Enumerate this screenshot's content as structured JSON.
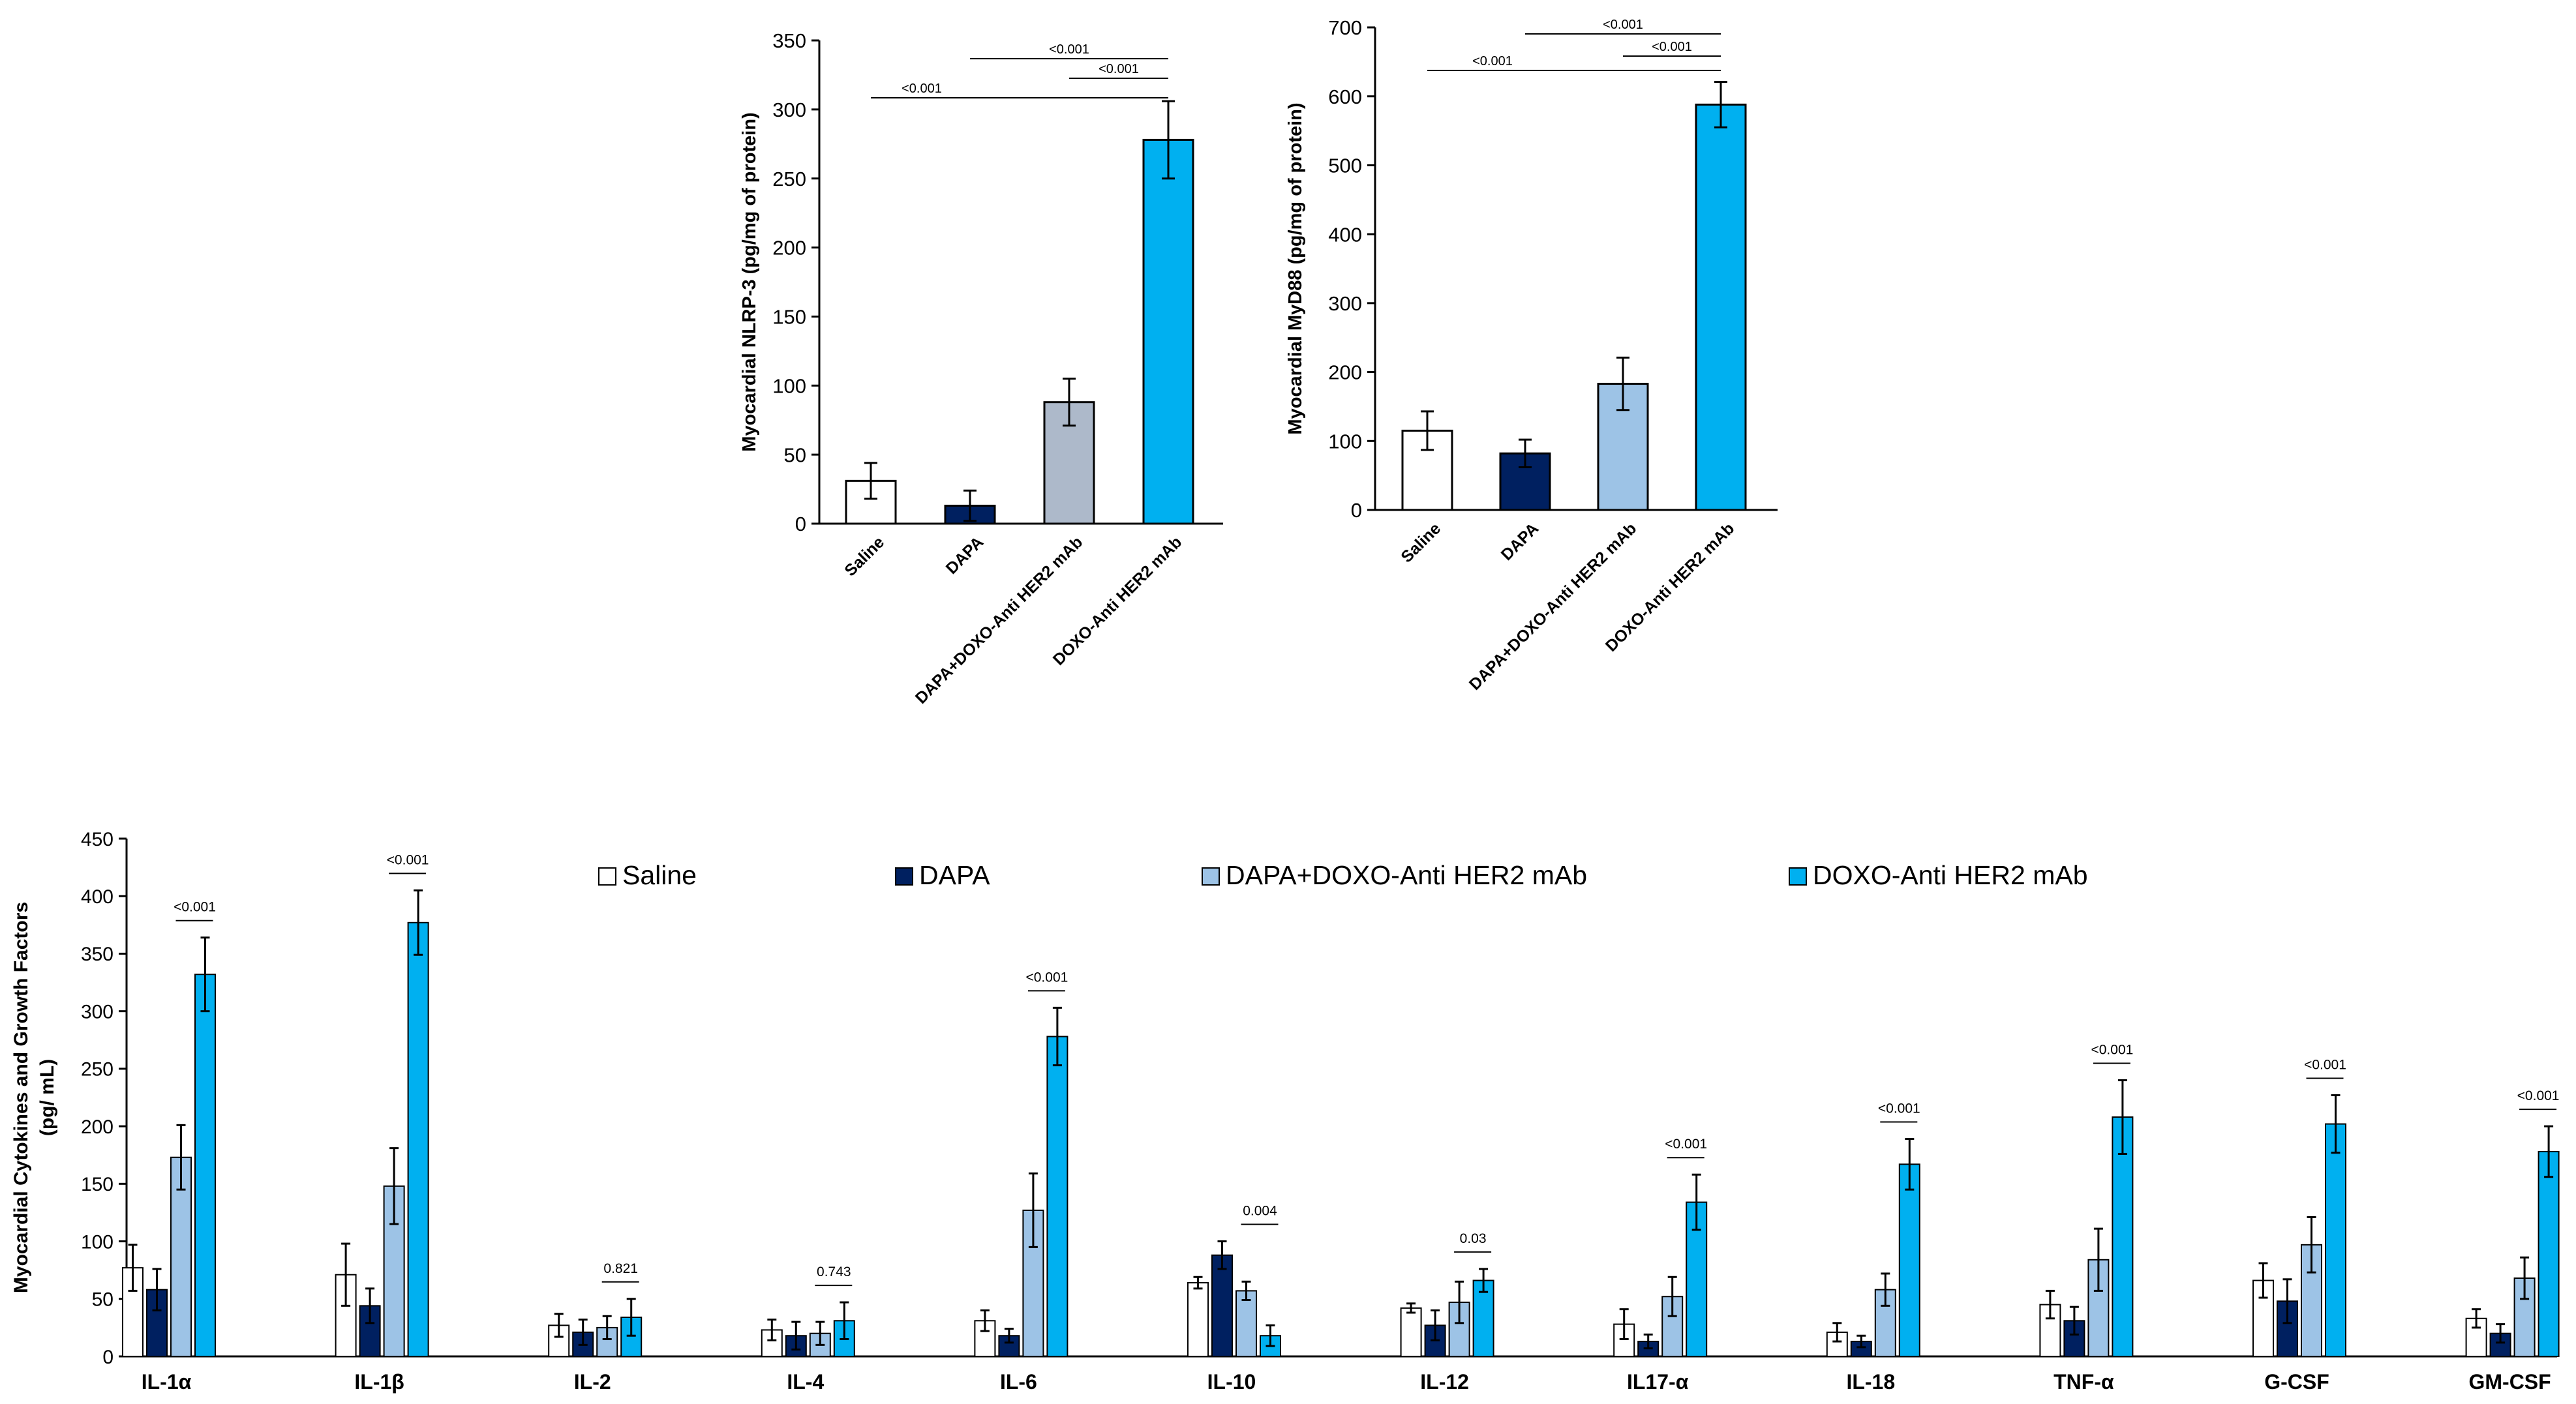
{
  "chart_data": [
    {
      "type": "bar",
      "ylabel": "Myocardial NLRP-3 (pg/mg of protein)",
      "categories": [
        "Saline",
        "DAPA",
        "DAPA+DOXO-Anti HER2 mAb",
        "DOXO-Anti HER2 mAb"
      ],
      "values": [
        31,
        13,
        88,
        278
      ],
      "errors": [
        13,
        11,
        17,
        28
      ],
      "colors": [
        "#ffffff",
        "#002060",
        "#adb9ca",
        "#00b0f0"
      ],
      "ylim": [
        0,
        350
      ],
      "yticks": [
        0,
        50,
        100,
        150,
        200,
        250,
        300,
        350
      ],
      "grid": false,
      "significance": [
        {
          "from": 1,
          "to": 3,
          "label": "<0.001"
        },
        {
          "from": 2,
          "to": 3,
          "label": "<0.001"
        },
        {
          "from": 0,
          "to": 3,
          "label": "<0.001"
        }
      ]
    },
    {
      "type": "bar",
      "ylabel": "Myocardial MyD88 (pg/mg of protein)",
      "categories": [
        "Saline",
        "DAPA",
        "DAPA+DOXO-Anti HER2 mAb",
        "DOXO-Anti HER2 mAb"
      ],
      "values": [
        115,
        82,
        183,
        588
      ],
      "errors": [
        28,
        20,
        38,
        33
      ],
      "colors": [
        "#ffffff",
        "#002060",
        "#9dc3e6",
        "#00b0f0"
      ],
      "ylim": [
        0,
        700
      ],
      "yticks": [
        0,
        100,
        200,
        300,
        400,
        500,
        600,
        700
      ],
      "grid": false,
      "significance": [
        {
          "from": 1,
          "to": 3,
          "label": "<0.001"
        },
        {
          "from": 2,
          "to": 3,
          "label": "<0.001"
        },
        {
          "from": 0,
          "to": 3,
          "label": "<0.001"
        }
      ]
    },
    {
      "type": "bar",
      "ylabel": "Myocardial Cytokines and Growth Factors (pg/ mL)",
      "categories": [
        "IL-1α",
        "IL-1β",
        "IL-2",
        "IL-4",
        "IL-6",
        "IL-10",
        "IL-12",
        "IL17-α",
        "IL-18",
        "TNF-α",
        "G-CSF",
        "GM-CSF"
      ],
      "ylim": [
        0,
        450
      ],
      "yticks": [
        0,
        50,
        100,
        150,
        200,
        250,
        300,
        350,
        400,
        450
      ],
      "grid": false,
      "legend_position": "top",
      "series": [
        {
          "name": "Saline",
          "color": "#ffffff",
          "values": [
            77,
            71,
            27,
            23,
            31,
            64,
            42,
            28,
            21,
            45,
            66,
            33
          ],
          "errors": [
            20,
            27,
            10,
            9,
            9,
            5,
            4,
            13,
            8,
            12,
            15,
            8
          ]
        },
        {
          "name": "DAPA",
          "color": "#002060",
          "values": [
            58,
            44,
            21,
            18,
            18,
            88,
            27,
            13,
            13,
            31,
            48,
            20
          ],
          "errors": [
            18,
            15,
            11,
            12,
            6,
            12,
            13,
            6,
            5,
            12,
            19,
            8
          ]
        },
        {
          "name": "DAPA+DOXO-Anti HER2 mAb",
          "color": "#9dc3e6",
          "values": [
            173,
            148,
            25,
            20,
            127,
            57,
            47,
            52,
            58,
            84,
            97,
            68
          ],
          "errors": [
            28,
            33,
            10,
            10,
            32,
            8,
            18,
            17,
            14,
            27,
            24,
            18
          ]
        },
        {
          "name": "DOXO-Anti HER2 mAb",
          "color": "#00b0f0",
          "values": [
            332,
            377,
            34,
            31,
            278,
            18,
            66,
            134,
            167,
            208,
            202,
            178
          ],
          "errors": [
            32,
            28,
            16,
            16,
            25,
            9,
            10,
            24,
            22,
            32,
            25,
            22
          ]
        }
      ],
      "significance": [
        "<0.001",
        "<0.001",
        "0.821",
        "0.743",
        "<0.001",
        "0.004",
        "0.03",
        "<0.001",
        "<0.001",
        "<0.001",
        "<0.001",
        "<0.001"
      ]
    }
  ]
}
